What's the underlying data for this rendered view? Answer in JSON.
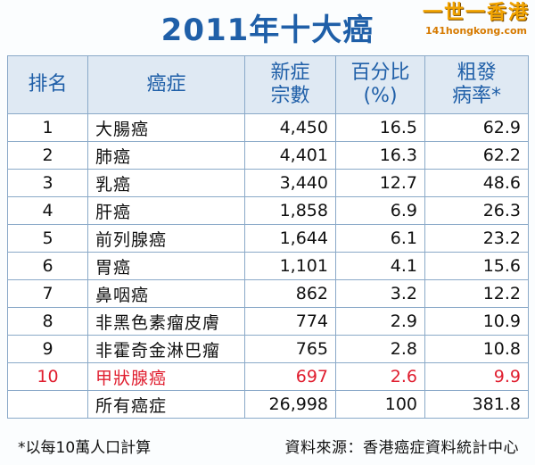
{
  "title": "2011年十大癌",
  "logo": {
    "name": "一世一香港",
    "site": "141hongkong.com"
  },
  "table": {
    "headers": {
      "rank": "排名",
      "cancer": "癌症",
      "cases": [
        "新症",
        "宗數"
      ],
      "percent": [
        "百分比",
        "(%)"
      ],
      "rate": [
        "粗發",
        "病率*"
      ]
    },
    "rows": [
      {
        "rank": "1",
        "name": "大腸癌",
        "cases": "4,450",
        "percent": "16.5",
        "rate": "62.9"
      },
      {
        "rank": "2",
        "name": "肺癌",
        "cases": "4,401",
        "percent": "16.3",
        "rate": "62.2"
      },
      {
        "rank": "3",
        "name": "乳癌",
        "cases": "3,440",
        "percent": "12.7",
        "rate": "48.6"
      },
      {
        "rank": "4",
        "name": "肝癌",
        "cases": "1,858",
        "percent": "6.9",
        "rate": "26.3"
      },
      {
        "rank": "5",
        "name": "前列腺癌",
        "cases": "1,644",
        "percent": "6.1",
        "rate": "23.2"
      },
      {
        "rank": "6",
        "name": "胃癌",
        "cases": "1,101",
        "percent": "4.1",
        "rate": "15.6"
      },
      {
        "rank": "7",
        "name": "鼻咽癌",
        "cases": "862",
        "percent": "3.2",
        "rate": "12.2"
      },
      {
        "rank": "8",
        "name": "非黑色素瘤皮膚",
        "cases": "774",
        "percent": "2.9",
        "rate": "10.9"
      },
      {
        "rank": "9",
        "name": "非霍奇金淋巴瘤",
        "cases": "765",
        "percent": "2.8",
        "rate": "10.8"
      },
      {
        "rank": "10",
        "name": "甲狀腺癌",
        "cases": "697",
        "percent": "2.6",
        "rate": "9.9"
      }
    ],
    "total": {
      "name": "所有癌症",
      "cases": "26,998",
      "percent": "100",
      "rate": "381.8"
    }
  },
  "footer": {
    "note": "*以每10萬人口計算",
    "source": "資料來源：香港癌症資料統計中心"
  },
  "colors": {
    "title": "#1f5fa8",
    "header_bg": "#dfe9f3",
    "border": "#8aa9c8",
    "highlight": "#e01e2f"
  }
}
